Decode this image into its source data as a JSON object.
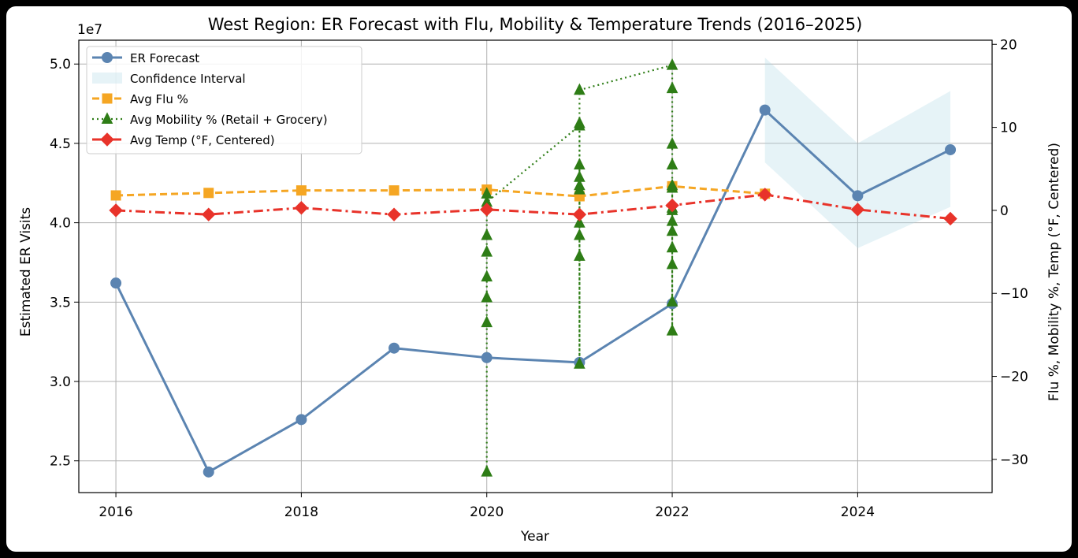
{
  "chart_data": {
    "type": "line",
    "title": "West Region: ER Forecast with Flu, Mobility & Temperature Trends (2016–2025)",
    "xlabel": "Year",
    "ylabel_left": "Estimated ER Visits",
    "ylabel_right": "Flu %, Mobility %, Temp (°F, Centered)",
    "left_axis_multiplier": "1e7",
    "x_ticks": [
      "2016",
      "2018",
      "2020",
      "2022",
      "2024"
    ],
    "x_tick_values": [
      2016,
      2018,
      2020,
      2022,
      2024
    ],
    "xlim": [
      2015.6,
      2025.45
    ],
    "y_left_ticks": [
      "2.5",
      "3.0",
      "3.5",
      "4.0",
      "4.5",
      "5.0"
    ],
    "y_left_tick_values": [
      2.5,
      3.0,
      3.5,
      4.0,
      4.5,
      5.0
    ],
    "ylim_left": [
      2.3,
      5.15
    ],
    "y_right_ticks": [
      "−30",
      "−20",
      "−10",
      "0",
      "10",
      "20"
    ],
    "y_right_tick_values": [
      -30,
      -20,
      -10,
      0,
      10,
      20
    ],
    "ylim_right": [
      -34,
      20.5
    ],
    "grid": true,
    "legend_position": "top-left",
    "series": [
      {
        "name": "ER Forecast",
        "axis": "left",
        "color": "#5b84b1",
        "marker": "circle",
        "style": "solid",
        "x": [
          2016,
          2017,
          2018,
          2019,
          2020,
          2021,
          2022,
          2023,
          2024,
          2025
        ],
        "values": [
          3.62,
          2.43,
          2.76,
          3.21,
          3.15,
          3.12,
          3.49,
          4.71,
          4.17,
          4.46
        ]
      },
      {
        "name": "Confidence Interval",
        "axis": "left",
        "color": "#add8e6",
        "type": "band",
        "x": [
          2023,
          2024,
          2025
        ],
        "lower": [
          4.38,
          3.84,
          4.1
        ],
        "upper": [
          5.04,
          4.5,
          4.83
        ]
      },
      {
        "name": "Avg Flu %",
        "axis": "right",
        "color": "#f5a623",
        "marker": "square",
        "style": "dashed",
        "x": [
          2016,
          2017,
          2018,
          2019,
          2020,
          2021,
          2022,
          2023
        ],
        "values": [
          1.8,
          2.1,
          2.4,
          2.4,
          2.5,
          1.7,
          2.9,
          2.0
        ]
      },
      {
        "name": "Avg Mobility % (Retail + Grocery)",
        "axis": "right",
        "color": "#2e7d16",
        "marker": "triangle",
        "style": "dotted",
        "x": [
          2020,
          2020,
          2020,
          2020,
          2020,
          2020,
          2020,
          2020,
          2020,
          2021,
          2021,
          2021,
          2021,
          2021,
          2021,
          2021,
          2021,
          2021,
          2021,
          2021,
          2022,
          2022,
          2022,
          2022,
          2022,
          2022,
          2022,
          2022,
          2022,
          2022,
          2022,
          2022,
          2022,
          2022
        ],
        "values": [
          -31.5,
          -13.5,
          -10.5,
          -8.0,
          -5.0,
          -3.0,
          0.5,
          2.0,
          1.0,
          10.2,
          -18.5,
          -5.5,
          -3.0,
          -1.5,
          2.5,
          4.0,
          5.5,
          3.0,
          10.5,
          14.5,
          17.5,
          14.7,
          8.0,
          5.5,
          2.7,
          0.0,
          -1.3,
          -2.5,
          -4.5,
          -6.5,
          -11.0,
          -14.5,
          0.3,
          3.0
        ]
      },
      {
        "name": "Avg Temp (°F, Centered)",
        "axis": "right",
        "color": "#e8332a",
        "marker": "diamond",
        "style": "dashdot",
        "x": [
          2016,
          2017,
          2018,
          2019,
          2020,
          2021,
          2022,
          2023,
          2024,
          2025
        ],
        "values": [
          0.0,
          -0.5,
          0.3,
          -0.5,
          0.1,
          -0.5,
          0.6,
          1.9,
          0.1,
          -1.0
        ]
      }
    ]
  }
}
